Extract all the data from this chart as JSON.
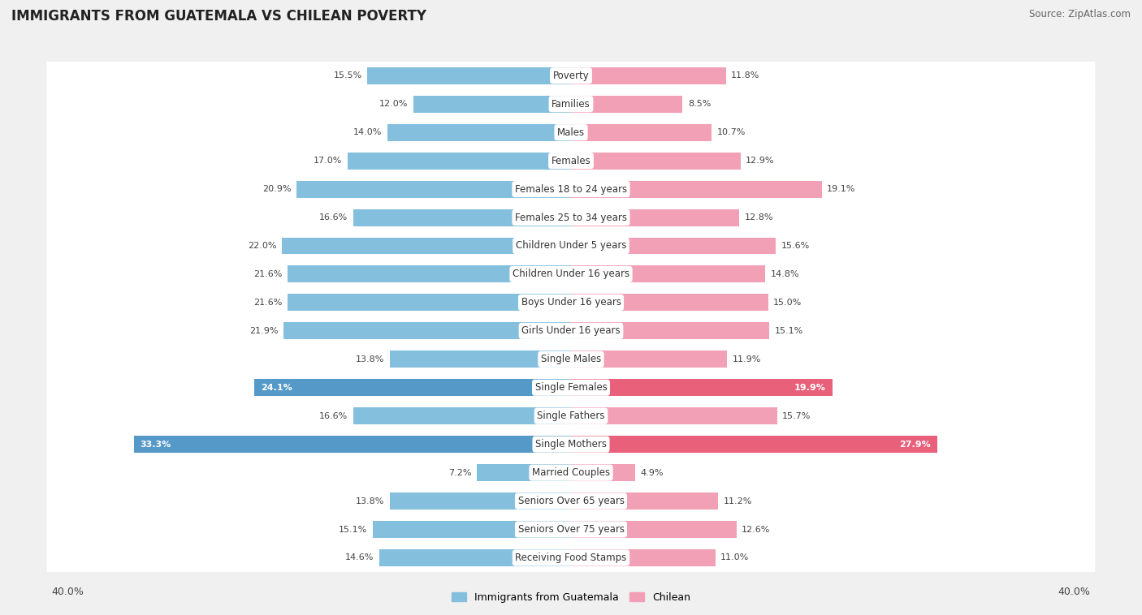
{
  "title": "IMMIGRANTS FROM GUATEMALA VS CHILEAN POVERTY",
  "source": "Source: ZipAtlas.com",
  "categories": [
    "Poverty",
    "Families",
    "Males",
    "Females",
    "Females 18 to 24 years",
    "Females 25 to 34 years",
    "Children Under 5 years",
    "Children Under 16 years",
    "Boys Under 16 years",
    "Girls Under 16 years",
    "Single Males",
    "Single Females",
    "Single Fathers",
    "Single Mothers",
    "Married Couples",
    "Seniors Over 65 years",
    "Seniors Over 75 years",
    "Receiving Food Stamps"
  ],
  "guatemala_values": [
    15.5,
    12.0,
    14.0,
    17.0,
    20.9,
    16.6,
    22.0,
    21.6,
    21.6,
    21.9,
    13.8,
    24.1,
    16.6,
    33.3,
    7.2,
    13.8,
    15.1,
    14.6
  ],
  "chilean_values": [
    11.8,
    8.5,
    10.7,
    12.9,
    19.1,
    12.8,
    15.6,
    14.8,
    15.0,
    15.1,
    11.9,
    19.9,
    15.7,
    27.9,
    4.9,
    11.2,
    12.6,
    11.0
  ],
  "guatemala_color": "#85BFDE",
  "chilean_color": "#F2A0B5",
  "guatemala_label": "Immigrants from Guatemala",
  "chilean_label": "Chilean",
  "max_val": 40.0,
  "background_color": "#f0f0f0",
  "row_bg_color": "#ffffff",
  "highlight_rows": [
    11,
    13
  ],
  "highlight_guatemala_color": "#5599C8",
  "highlight_chilean_color": "#E8607A",
  "label_fontsize": 8.5,
  "value_fontsize": 8.0,
  "title_fontsize": 12,
  "title_color": "#222222",
  "source_fontsize": 8.5,
  "source_color": "#666666"
}
